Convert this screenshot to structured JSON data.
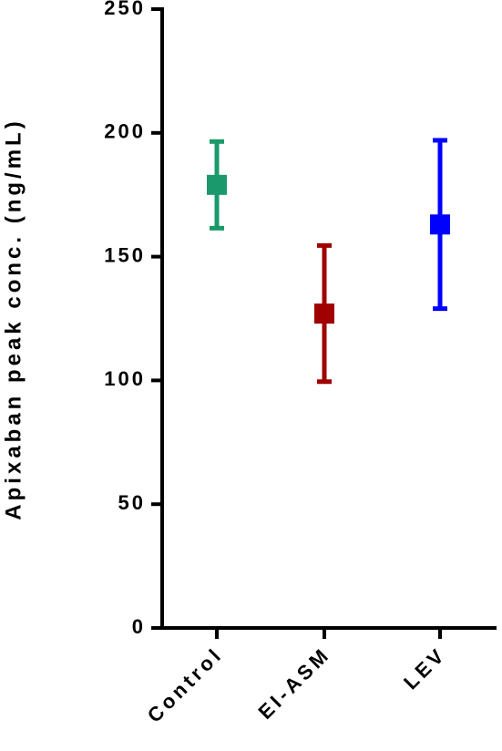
{
  "chart_data": {
    "type": "errorbar",
    "y_label": "Apixaban peak conc. (ng/mL)",
    "categories": [
      "Control",
      "EI-ASM",
      "LEV"
    ],
    "values": [
      179,
      127,
      163
    ],
    "errors": [
      17.5,
      27.5,
      34
    ],
    "colors": [
      "#1a9a6c",
      "#a00000",
      "#0000ff"
    ],
    "ylim": [
      0,
      250
    ],
    "yticks": [
      0,
      50,
      100,
      150,
      200,
      250
    ]
  }
}
